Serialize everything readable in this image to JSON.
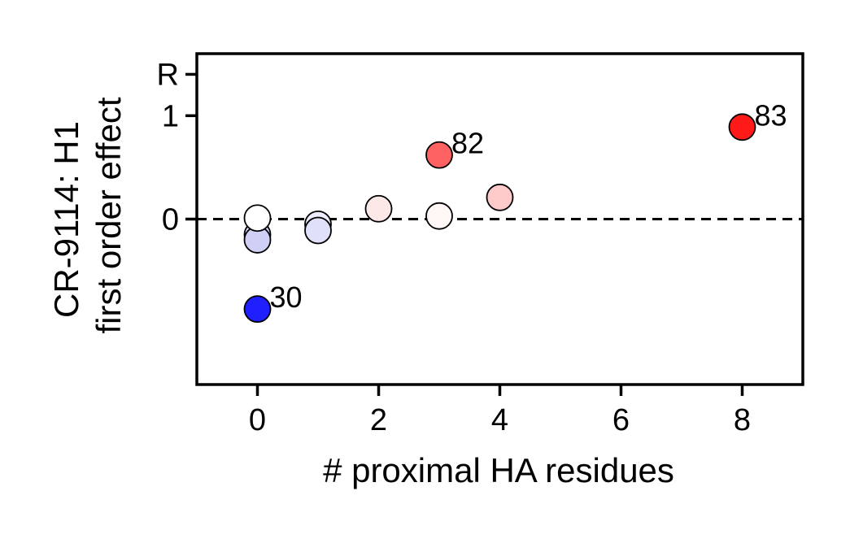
{
  "chart_data": {
    "type": "scatter",
    "xlabel": "# proximal HA residues",
    "ylabel_line1": "CR-9114: H1",
    "ylabel_line2": "first order effect",
    "xlim": [
      -1,
      9
    ],
    "ylim": [
      -1.6,
      1.6
    ],
    "xticks": [
      0,
      2,
      4,
      6,
      8
    ],
    "yticks": [
      {
        "value": 0,
        "label": "0"
      },
      {
        "value": 1,
        "label": "1"
      },
      {
        "value": 1.4,
        "label": "R"
      }
    ],
    "reference_line": {
      "y": 0,
      "style": "dashed"
    },
    "grid": false,
    "points": [
      {
        "x": 0,
        "y": -0.15,
        "color": "#d6d6f8",
        "label": ""
      },
      {
        "x": 0,
        "y": -0.2,
        "color": "#d0d0f6",
        "label": ""
      },
      {
        "x": 0,
        "y": 0.01,
        "color": "#ffffff",
        "label": ""
      },
      {
        "x": 0,
        "y": -0.87,
        "color": "#1f1fff",
        "label": "30"
      },
      {
        "x": 1,
        "y": -0.05,
        "color": "#ececfc",
        "label": ""
      },
      {
        "x": 1,
        "y": -0.11,
        "color": "#e0e0fa",
        "label": ""
      },
      {
        "x": 2,
        "y": 0.1,
        "color": "#fde8e8",
        "label": ""
      },
      {
        "x": 3,
        "y": 0.03,
        "color": "#fff6f6",
        "label": ""
      },
      {
        "x": 3,
        "y": 0.62,
        "color": "#ff6262",
        "label": "82"
      },
      {
        "x": 4,
        "y": 0.21,
        "color": "#ffcaca",
        "label": ""
      },
      {
        "x": 8,
        "y": 0.89,
        "color": "#ff1a1a",
        "label": "83"
      }
    ]
  }
}
